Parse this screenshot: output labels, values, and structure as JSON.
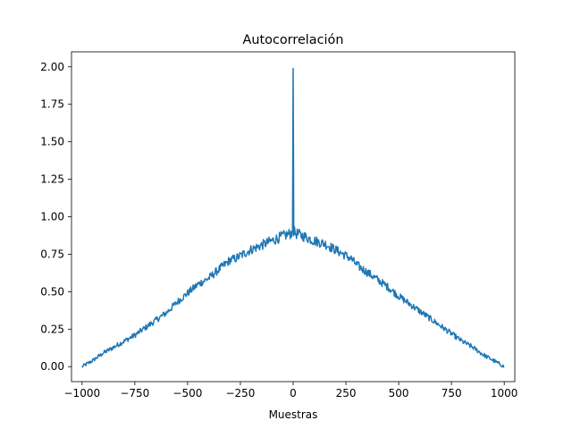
{
  "chart_data": {
    "type": "line",
    "title": "Autocorrelación",
    "xlabel": "Muestras",
    "ylabel": "",
    "xlim": [
      -1050,
      1050
    ],
    "ylim": [
      -0.1,
      2.1
    ],
    "grid": false,
    "legend": "none",
    "x_ticks": [
      -1000,
      -750,
      -500,
      -250,
      0,
      250,
      500,
      750,
      1000
    ],
    "x_tick_labels": [
      "−1000",
      "−750",
      "−500",
      "−250",
      "0",
      "250",
      "500",
      "750",
      "1000"
    ],
    "y_ticks": [
      0.0,
      0.25,
      0.5,
      0.75,
      1.0,
      1.25,
      1.5,
      1.75,
      2.0
    ],
    "y_tick_labels": [
      "0.00",
      "0.25",
      "0.50",
      "0.75",
      "1.00",
      "1.25",
      "1.50",
      "1.75",
      "2.00"
    ],
    "series": [
      {
        "color": "#1f77b4",
        "x": [
          -1000,
          -950,
          -900,
          -850,
          -800,
          -750,
          -700,
          -650,
          -600,
          -550,
          -500,
          -450,
          -400,
          -350,
          -300,
          -275,
          -250,
          -200,
          -150,
          -100,
          -50,
          -10,
          -3,
          0,
          3,
          10,
          50,
          100,
          150,
          200,
          250,
          275,
          300,
          350,
          400,
          450,
          500,
          550,
          600,
          650,
          700,
          750,
          800,
          850,
          900,
          950,
          1000
        ],
        "y": [
          0.0,
          0.04,
          0.09,
          0.13,
          0.17,
          0.21,
          0.26,
          0.31,
          0.36,
          0.43,
          0.49,
          0.55,
          0.59,
          0.65,
          0.71,
          0.72,
          0.74,
          0.78,
          0.81,
          0.84,
          0.87,
          0.89,
          0.9,
          1.99,
          0.9,
          0.89,
          0.87,
          0.84,
          0.82,
          0.78,
          0.74,
          0.72,
          0.68,
          0.63,
          0.58,
          0.53,
          0.47,
          0.42,
          0.37,
          0.32,
          0.27,
          0.22,
          0.17,
          0.13,
          0.08,
          0.04,
          0.0
        ]
      }
    ]
  }
}
